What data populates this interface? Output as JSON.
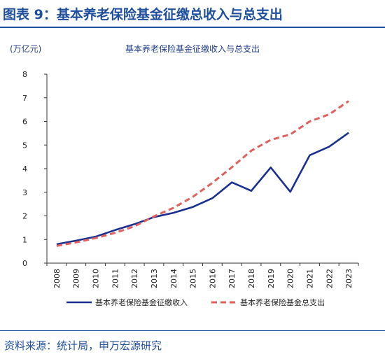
{
  "header": {
    "title": "图表 9：基本养老保险基金征缴总收入与总支出"
  },
  "footer": {
    "source": "资料来源：统计局，申万宏源研究"
  },
  "colors": {
    "brand": "#1f4e9c",
    "series_income": "#1a2f8f",
    "series_expenditure": "#e06060"
  },
  "chart_data": {
    "type": "line",
    "title": "基本养老保险基金征缴收入与总支出",
    "unit_label": "(万亿元)",
    "xlabel": "",
    "ylabel": "",
    "ylim": [
      0,
      8
    ],
    "yticks": [
      "0",
      "1",
      "2",
      "3",
      "4",
      "5",
      "6",
      "7",
      "8"
    ],
    "categories": [
      "2008",
      "2009",
      "2010",
      "2011",
      "2012",
      "2013",
      "2014",
      "2015",
      "2016",
      "2017",
      "2018",
      "2019",
      "2020",
      "2021",
      "2022",
      "2023"
    ],
    "series": [
      {
        "name": "基本养老保险基金征缴收入",
        "style": "solid",
        "color": "#1a2f8f",
        "values": [
          0.8,
          0.95,
          1.12,
          1.4,
          1.65,
          1.95,
          2.13,
          2.38,
          2.75,
          3.42,
          3.06,
          4.05,
          3.02,
          4.57,
          4.93,
          5.52
        ]
      },
      {
        "name": "基本养老保险基金总支出",
        "style": "dashed",
        "color": "#e06060",
        "values": [
          0.73,
          0.88,
          1.06,
          1.28,
          1.56,
          1.98,
          2.34,
          2.81,
          3.4,
          4.06,
          4.76,
          5.22,
          5.45,
          6.0,
          6.3,
          6.86
        ]
      }
    ],
    "grid": false,
    "legend": "bottom"
  }
}
